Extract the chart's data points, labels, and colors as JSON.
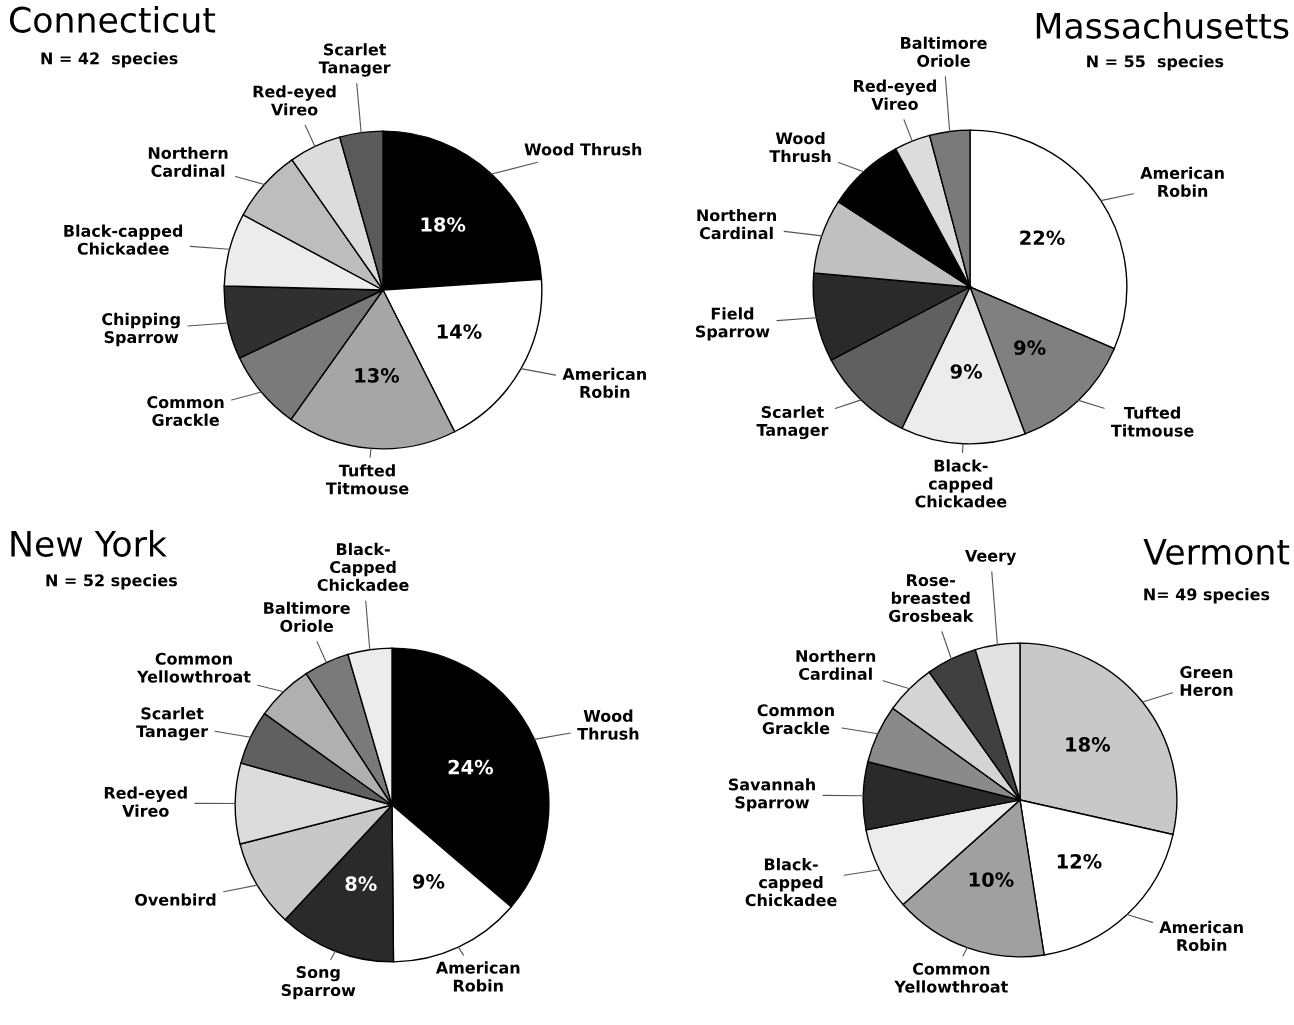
{
  "chart_data": [
    {
      "type": "pie",
      "title": "Connecticut",
      "subtitle": "N = 42  species",
      "categories": [
        "Wood Thrush",
        "American\nRobin",
        "Tufted\nTitmouse",
        "Common\nGrackle",
        "Chipping\nSparrow",
        "Black-capped\nChickadee",
        "Northern\nCardinal",
        "Red-eyed\nVireo",
        "Scarlet\nTanager"
      ],
      "values": [
        18,
        14,
        13,
        6.1,
        5.6,
        5.6,
        5.6,
        4.0,
        3.3
      ],
      "value_labels": [
        "18%",
        "14%",
        "13%",
        null,
        null,
        null,
        null,
        null,
        null
      ],
      "colors": [
        "#000000",
        "#ffffff",
        "#a6a6a6",
        "#7a7a7a",
        "#303030",
        "#ececec",
        "#bdbdbd",
        "#dcdcdc",
        "#5a5a5a"
      ]
    },
    {
      "type": "pie",
      "title": "Massachusetts",
      "subtitle": "N = 55  species",
      "categories": [
        "American\nRobin",
        "Tufted\nTitmouse",
        "Black-\ncapped\nChickadee",
        "Scarlet\nTanager",
        "Field\nSparrow",
        "Northern\nCardinal",
        "Wood\nThrush",
        "Red-eyed\nVireo",
        "Baltimore\nOriole"
      ],
      "values": [
        22,
        9,
        9,
        7.1,
        6.4,
        5.4,
        5.6,
        2.6,
        2.9
      ],
      "value_labels": [
        "22%",
        "9%",
        "9%",
        null,
        null,
        null,
        null,
        null,
        null
      ],
      "colors": [
        "#ffffff",
        "#808080",
        "#ececec",
        "#606060",
        "#2a2a2a",
        "#c0c0c0",
        "#000000",
        "#dcdcdc",
        "#7a7a7a"
      ]
    },
    {
      "type": "pie",
      "title": "New York",
      "subtitle": "N = 52 species",
      "categories": [
        "Wood\nThrush",
        "American\nRobin",
        "Song\nSparrow",
        "Ovenbird",
        "Red-eyed\nVireo",
        "Scarlet\nTanager",
        "Common\nYellowthroat",
        "Baltimore\nOriole",
        "Black-\nCapped\nChickadee"
      ],
      "values": [
        24,
        9,
        8,
        6.0,
        5.5,
        3.7,
        3.9,
        3.1,
        3.0
      ],
      "value_labels": [
        "24%",
        "9%",
        "8%",
        null,
        null,
        null,
        null,
        null,
        null
      ],
      "colors": [
        "#000000",
        "#ffffff",
        "#2a2a2a",
        "#c8c8c8",
        "#dcdcdc",
        "#606060",
        "#b0b0b0",
        "#7a7a7a",
        "#ececec"
      ]
    },
    {
      "type": "pie",
      "title": "Vermont",
      "subtitle": "N= 49 species",
      "categories": [
        "Green\nHeron",
        "American\nRobin",
        "Common\nYellowthroat",
        "Black-\ncapped\nChickadee",
        "Savannah\nSparrow",
        "Common\nGrackle",
        "Northern\nCardinal",
        "Rose-\nbreasted\nGrosbeak",
        "Veery"
      ],
      "values": [
        18,
        12,
        10,
        5.4,
        4.4,
        3.8,
        3.3,
        3.3,
        2.9
      ],
      "value_labels": [
        "18%",
        "12%",
        "10%",
        null,
        null,
        null,
        null,
        null,
        null
      ],
      "colors": [
        "#c8c8c8",
        "#ffffff",
        "#a0a0a0",
        "#ececec",
        "#2a2a2a",
        "#8a8a8a",
        "#d4d4d4",
        "#404040",
        "#e2e2e2"
      ]
    }
  ]
}
